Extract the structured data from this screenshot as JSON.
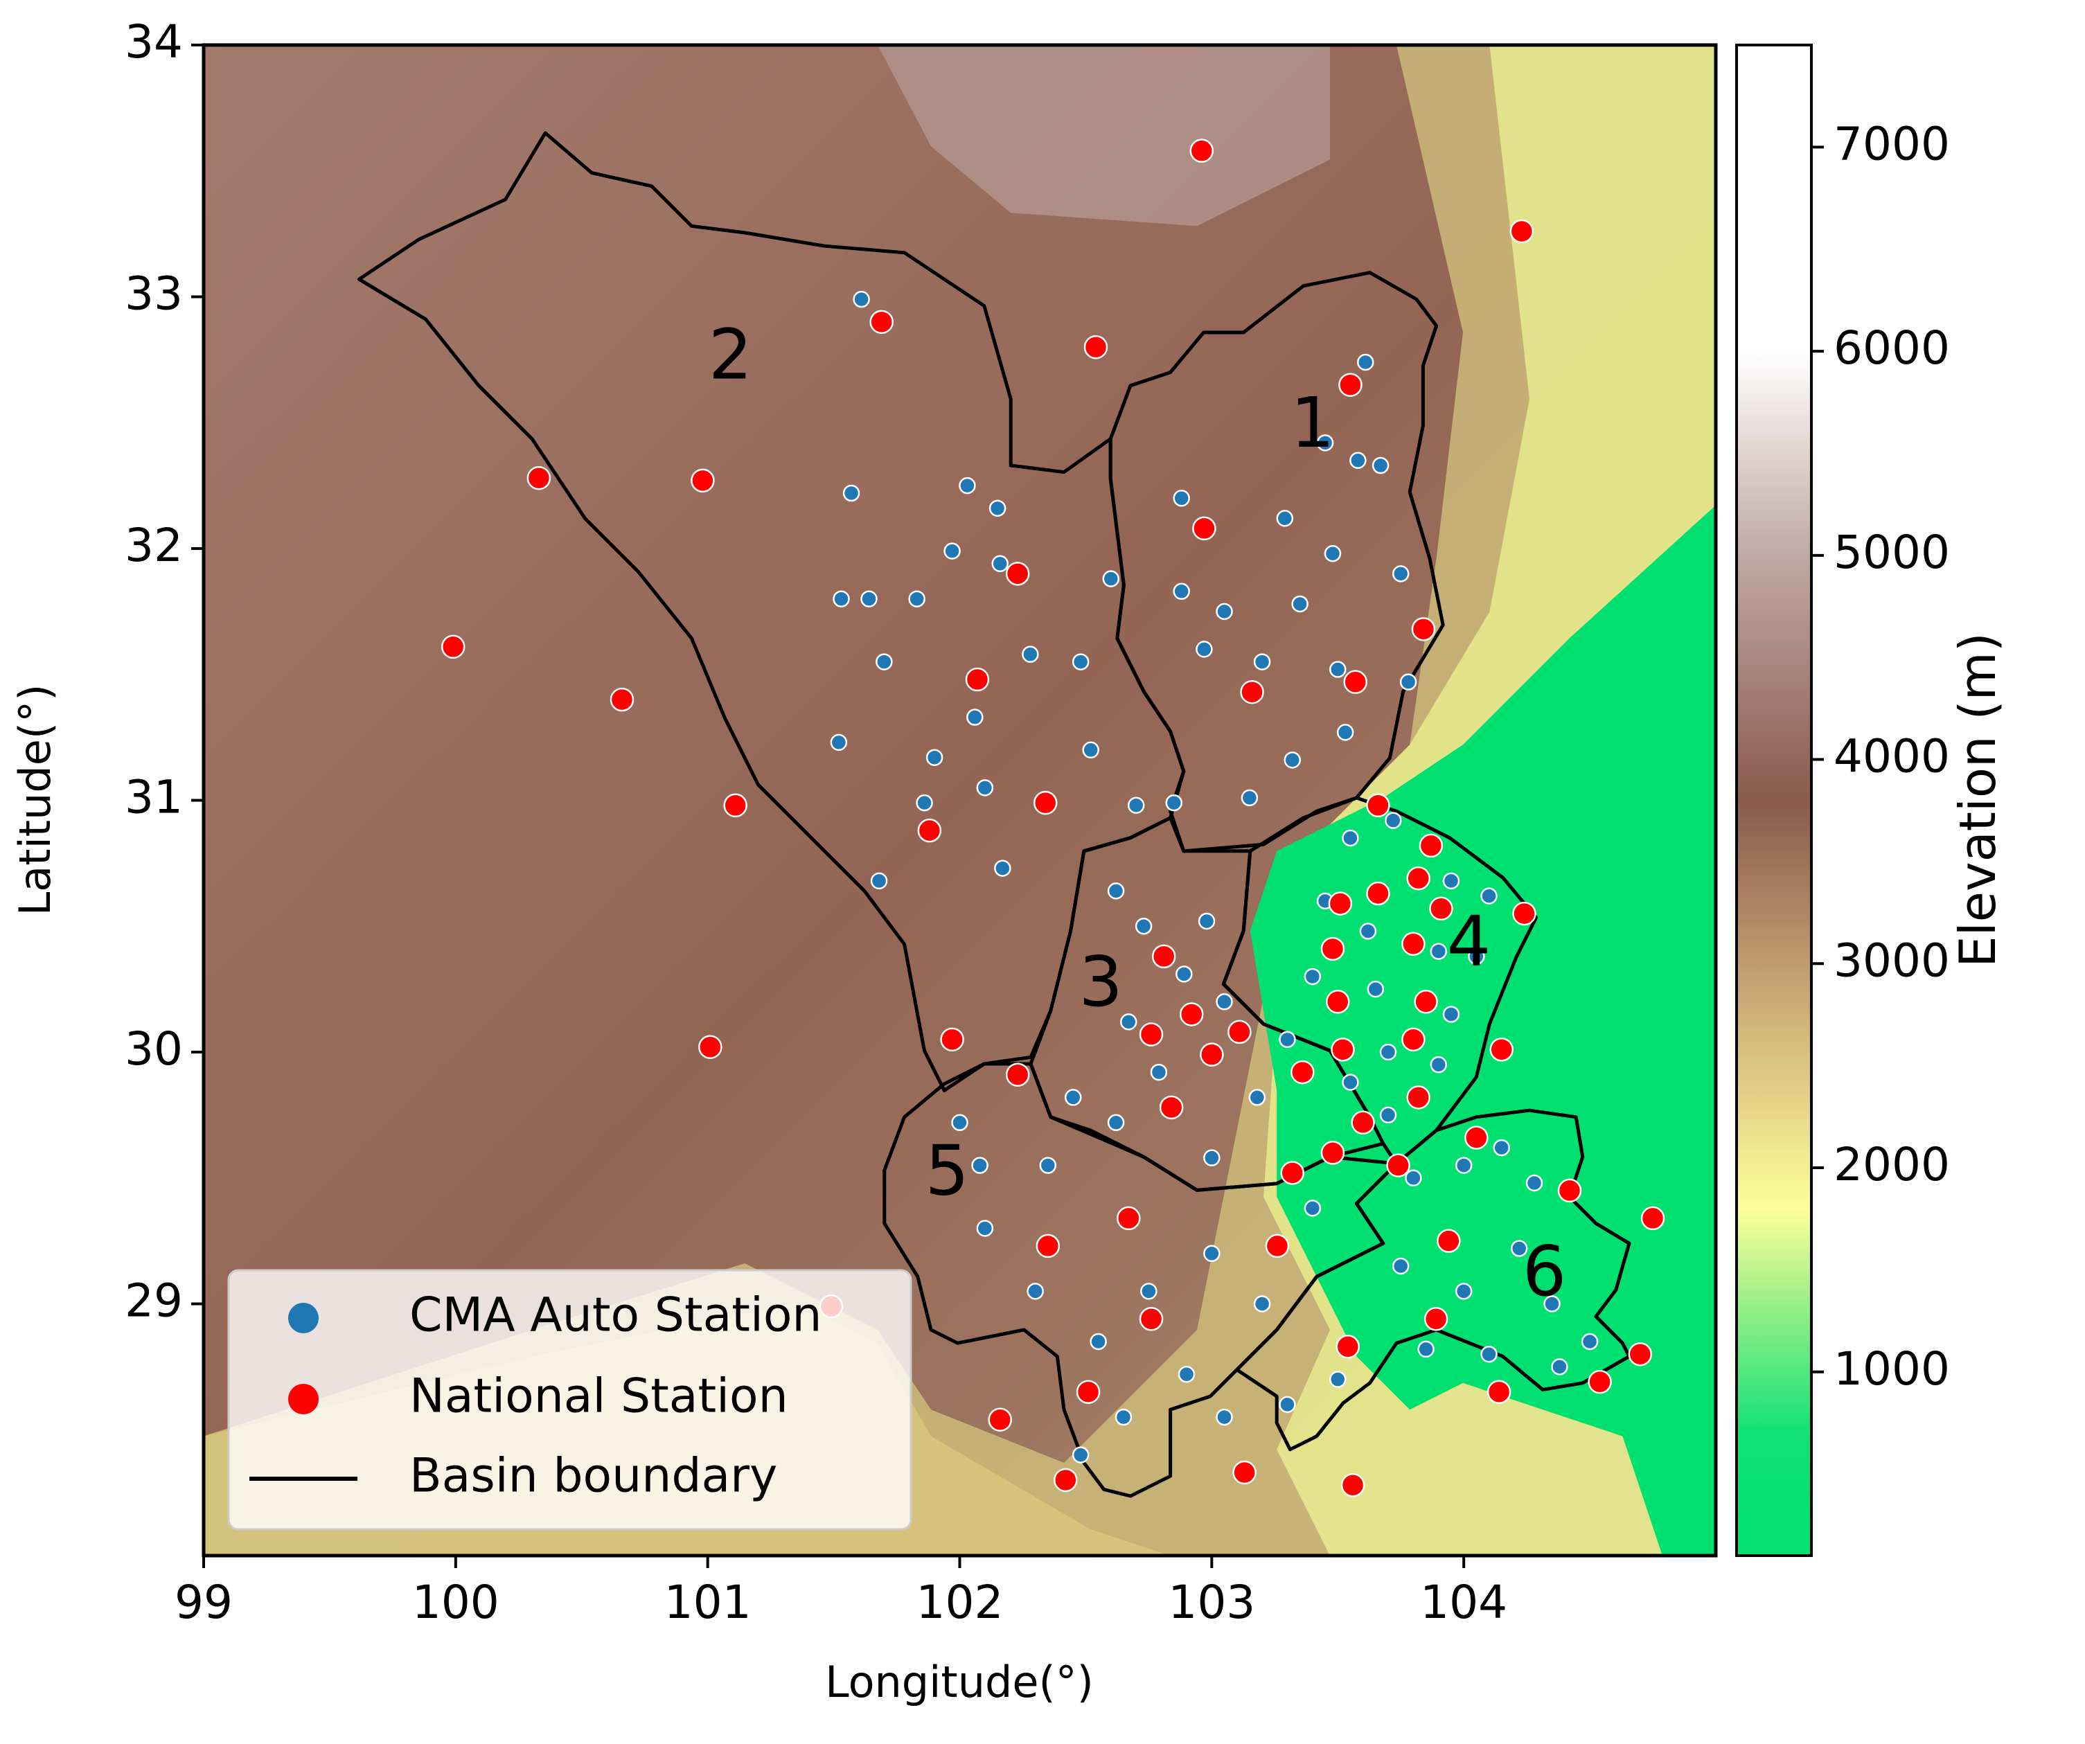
{
  "chart_data": {
    "type": "scatter",
    "xlabel": "Longitude(°)",
    "ylabel": "Latitude(°)",
    "xlim": [
      99,
      105
    ],
    "ylim": [
      28,
      34
    ],
    "xticks": [
      99,
      100,
      101,
      102,
      103,
      104
    ],
    "yticks": [
      29,
      30,
      31,
      32,
      33,
      34
    ],
    "legend": "lower left",
    "boundary": {
      "name": "Basin boundary",
      "color": "#000000"
    },
    "series": [
      {
        "name": "CMA Auto Station",
        "color": "#1f77b4",
        "x": [
          101.61,
          101.57,
          102.03,
          102.15,
          101.97,
          102.16,
          101.83,
          101.64,
          101.53,
          101.7,
          102.06,
          101.9,
          102.1,
          101.68,
          101.86,
          102.17,
          102.6,
          102.48,
          102.52,
          102.7,
          102.85,
          101.52,
          102.28,
          102.88,
          103.45,
          103.61,
          103.58,
          103.67,
          103.29,
          103.48,
          103.75,
          103.35,
          103.05,
          103.5,
          103.2,
          103.78,
          103.32,
          103.53,
          103.15,
          102.88,
          102.97,
          102.62,
          102.73,
          102.98,
          102.89,
          103.05,
          102.79,
          103.18,
          102.62,
          102.45,
          103.0,
          102.67,
          103.55,
          103.72,
          103.95,
          104.1,
          103.45,
          103.62,
          103.9,
          104.05,
          103.4,
          103.65,
          103.95,
          103.7,
          103.9,
          103.55,
          103.3,
          103.7,
          102.0,
          102.08,
          102.1,
          102.35,
          102.3,
          102.55,
          102.65,
          102.48,
          102.75,
          102.9,
          103.0,
          103.2,
          103.05,
          103.4,
          103.5,
          103.8,
          104.0,
          104.15,
          104.28,
          103.75,
          104.0,
          104.22,
          104.35,
          104.5,
          103.85,
          104.1,
          104.38,
          103.3
        ],
        "y": [
          32.99,
          32.22,
          32.25,
          32.16,
          31.99,
          31.94,
          31.8,
          31.8,
          31.8,
          31.55,
          31.33,
          31.17,
          31.05,
          30.68,
          30.99,
          30.73,
          31.88,
          31.55,
          31.2,
          30.98,
          30.99,
          31.23,
          31.58,
          31.83,
          32.42,
          32.74,
          32.35,
          32.33,
          32.12,
          31.98,
          31.9,
          31.78,
          31.75,
          31.52,
          31.55,
          31.47,
          31.16,
          31.27,
          31.01,
          32.2,
          31.6,
          30.64,
          30.5,
          30.52,
          30.31,
          30.2,
          29.92,
          29.82,
          29.72,
          29.82,
          29.58,
          30.12,
          30.85,
          30.92,
          30.68,
          30.62,
          30.6,
          30.48,
          30.4,
          30.38,
          30.3,
          30.25,
          30.15,
          30.0,
          29.95,
          29.88,
          30.05,
          29.75,
          29.72,
          29.55,
          29.3,
          29.55,
          29.05,
          28.85,
          28.55,
          28.4,
          29.05,
          28.72,
          29.2,
          29.0,
          28.55,
          29.38,
          28.7,
          29.5,
          29.55,
          29.62,
          29.48,
          29.15,
          29.05,
          29.22,
          29.0,
          28.85,
          28.82,
          28.8,
          28.75,
          28.6
        ]
      },
      {
        "name": "National Station",
        "color": "#ff0000",
        "x": [
          102.96,
          104.23,
          101.69,
          102.54,
          103.55,
          100.33,
          100.98,
          102.97,
          102.23,
          103.84,
          99.99,
          102.07,
          103.57,
          103.16,
          100.66,
          101.11,
          102.34,
          103.66,
          101.88,
          103.87,
          103.66,
          103.82,
          103.51,
          103.91,
          104.24,
          102.81,
          103.8,
          103.48,
          103.5,
          103.85,
          102.92,
          102.76,
          103.11,
          103.8,
          101.97,
          101.01,
          104.15,
          103.0,
          103.52,
          103.36,
          102.23,
          103.82,
          102.84,
          103.6,
          104.05,
          103.48,
          103.74,
          103.32,
          104.42,
          104.75,
          102.67,
          102.35,
          103.26,
          103.94,
          102.76,
          103.89,
          101.49,
          103.54,
          104.7,
          104.54,
          102.51,
          104.14,
          102.16,
          102.42,
          103.13,
          103.56
        ],
        "y": [
          33.58,
          33.26,
          32.9,
          32.8,
          32.65,
          32.28,
          32.27,
          32.08,
          31.9,
          31.68,
          31.61,
          31.48,
          31.47,
          31.43,
          31.4,
          30.98,
          30.99,
          30.98,
          30.88,
          30.82,
          30.63,
          30.69,
          30.59,
          30.57,
          30.55,
          30.38,
          30.43,
          30.41,
          30.2,
          30.2,
          30.15,
          30.07,
          30.08,
          30.05,
          30.05,
          30.02,
          30.01,
          29.99,
          30.01,
          29.92,
          29.91,
          29.82,
          29.78,
          29.72,
          29.66,
          29.6,
          29.55,
          29.52,
          29.45,
          29.34,
          29.34,
          29.23,
          29.23,
          29.25,
          28.94,
          28.94,
          28.99,
          28.83,
          28.8,
          28.69,
          28.65,
          28.65,
          28.54,
          28.3,
          28.33,
          28.28
        ]
      }
    ],
    "annotations": [
      {
        "text": "1",
        "x": 103.4,
        "y": 32.48
      },
      {
        "text": "2",
        "x": 101.09,
        "y": 32.75
      },
      {
        "text": "3",
        "x": 102.56,
        "y": 30.26
      },
      {
        "text": "4",
        "x": 104.02,
        "y": 30.42
      },
      {
        "text": "5",
        "x": 101.95,
        "y": 29.51
      },
      {
        "text": "6",
        "x": 104.32,
        "y": 29.11
      }
    ],
    "colorbar": {
      "label": "Elevation (m)",
      "lim": [
        100,
        7500
      ],
      "ticks": [
        1000,
        2000,
        3000,
        4000,
        5000,
        6000,
        7000
      ],
      "cmap": [
        {
          "value": 100,
          "color": "#00e070"
        },
        {
          "value": 700,
          "color": "#10e275"
        },
        {
          "value": 1400,
          "color": "#a8f08a"
        },
        {
          "value": 1800,
          "color": "#ffff99"
        },
        {
          "value": 2700,
          "color": "#d2b47a"
        },
        {
          "value": 3800,
          "color": "#8b5a4c"
        },
        {
          "value": 5000,
          "color": "#c0a8a4"
        },
        {
          "value": 6000,
          "color": "#ffffff"
        },
        {
          "value": 7500,
          "color": "#ffffff"
        }
      ]
    }
  }
}
